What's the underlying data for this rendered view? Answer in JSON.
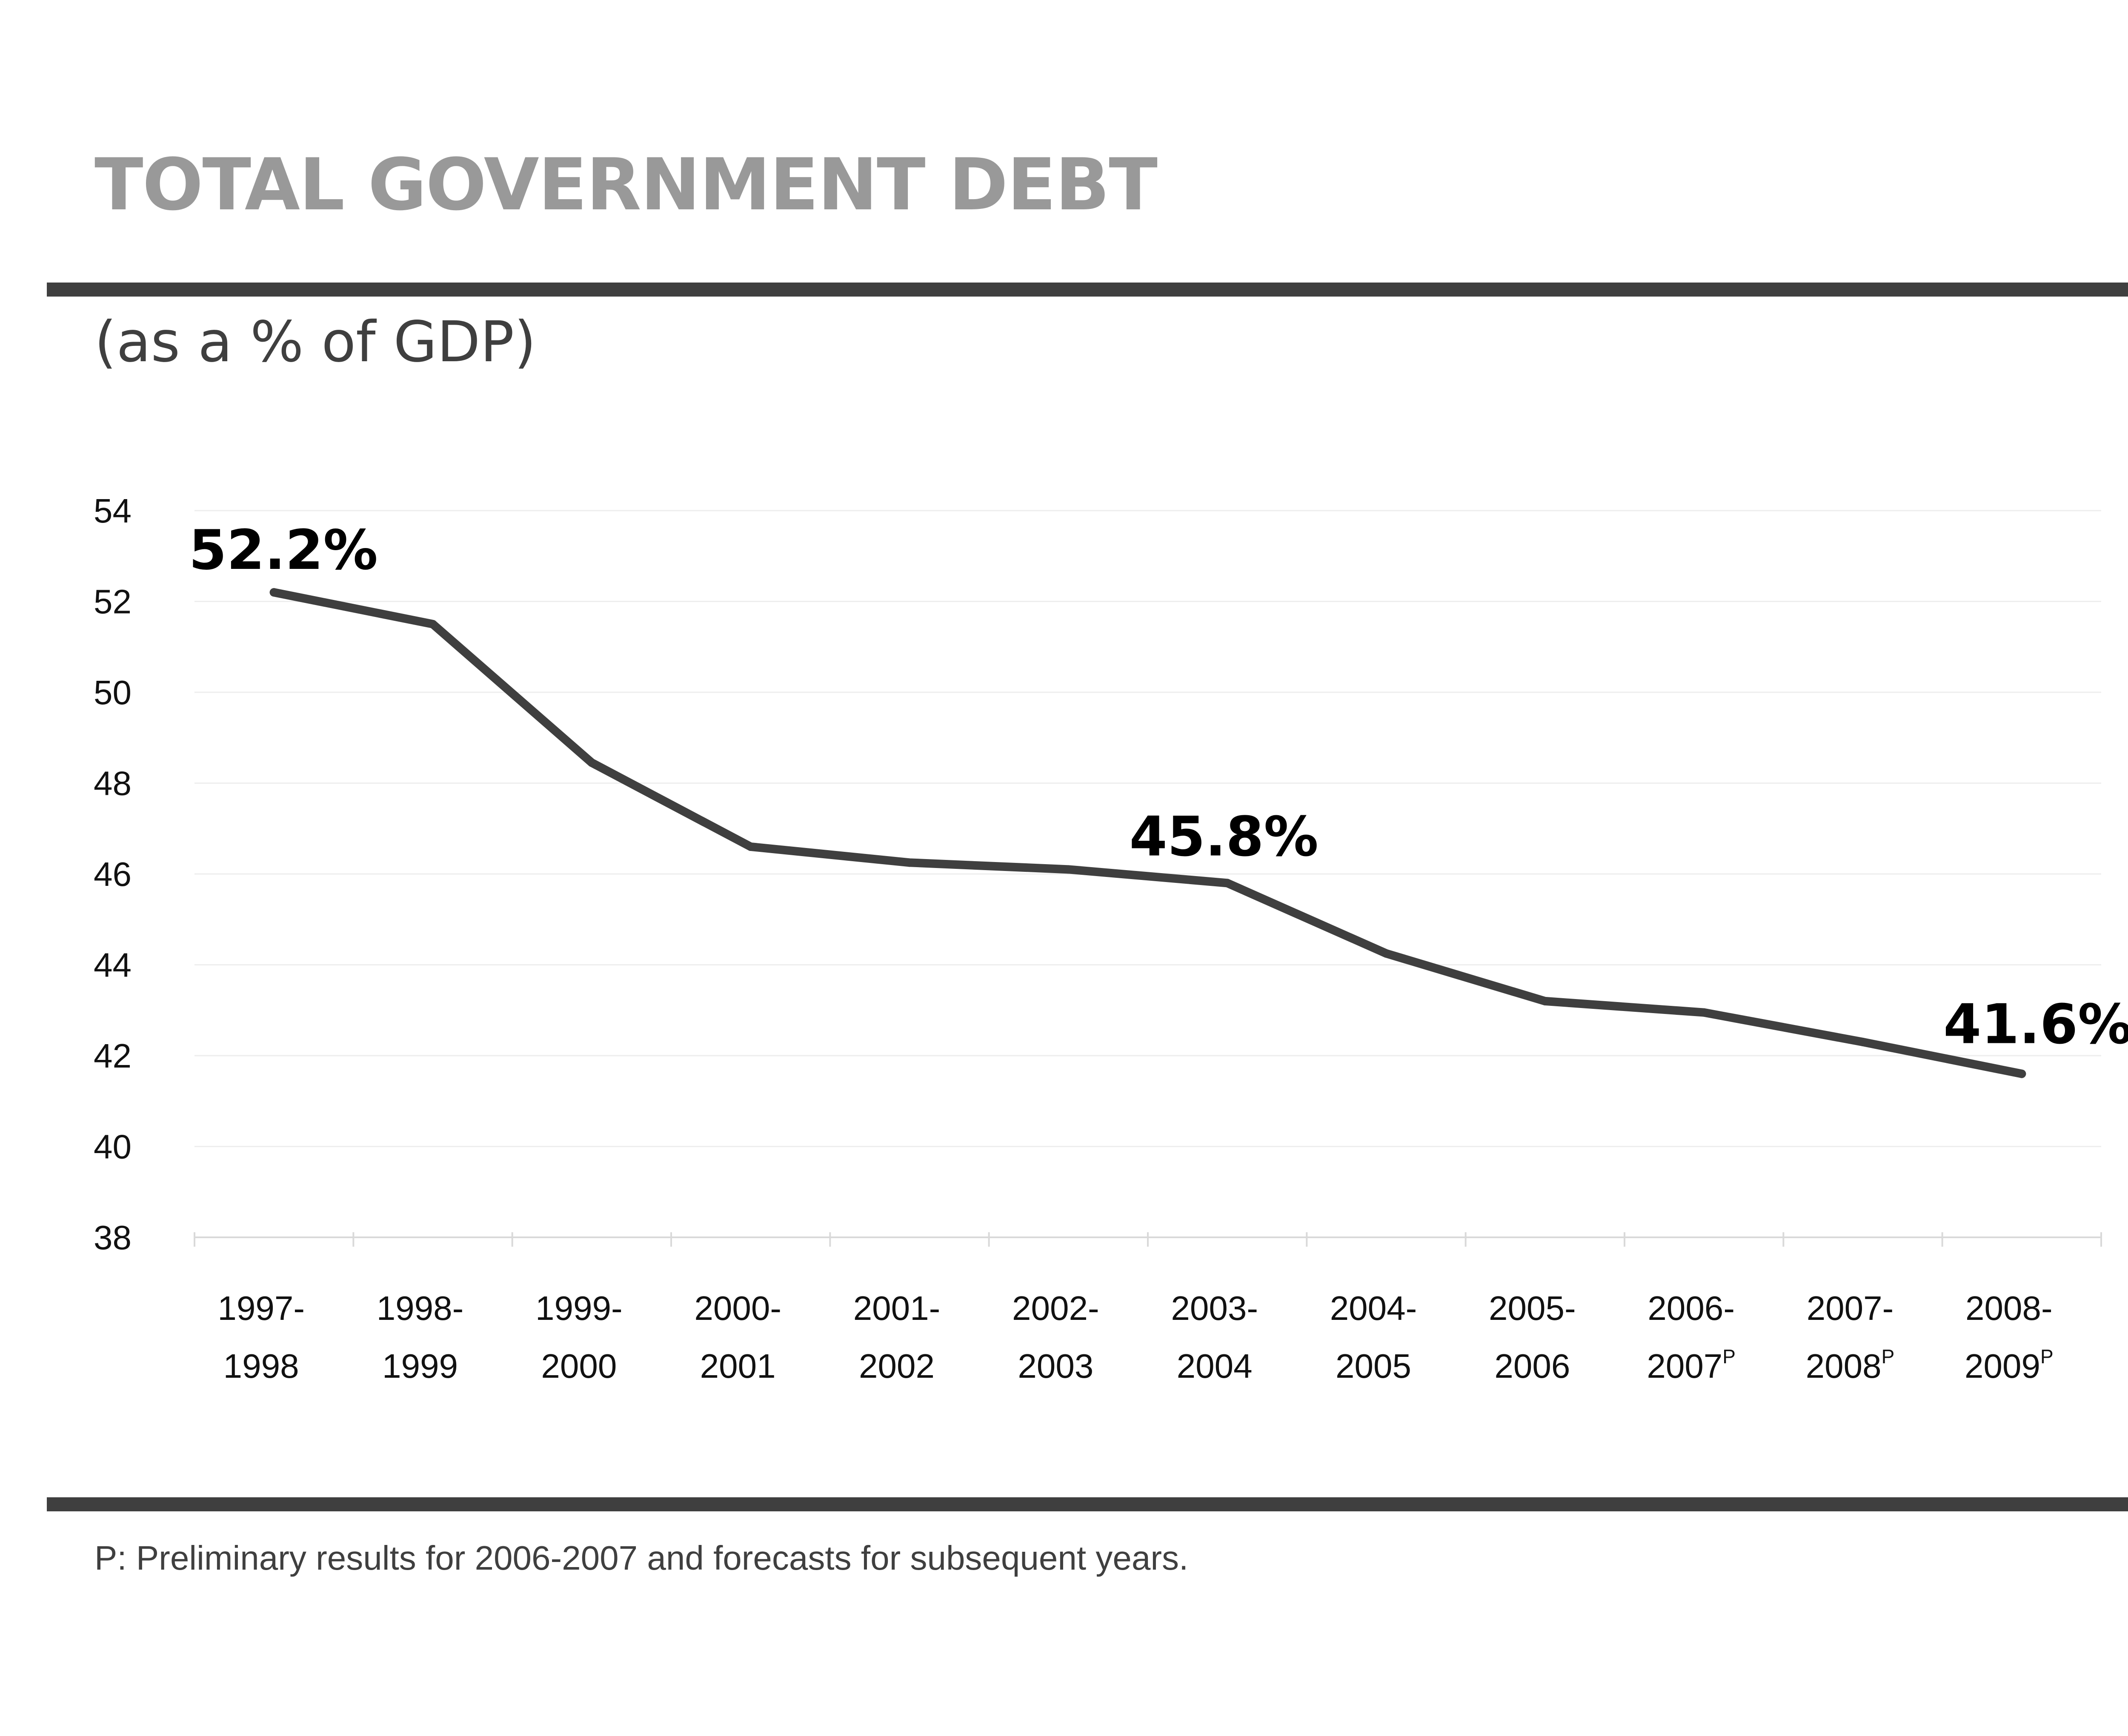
{
  "header": {
    "title": "TOTAL GOVERNMENT DEBT",
    "subtitle": "(as a % of GDP)"
  },
  "footnote": "P: Preliminary results for 2006-2007 and forecasts for subsequent years.",
  "colors": {
    "title": "#999999",
    "rules": "#3f3f3f",
    "line": "#3f3f3f",
    "grid": "#eeeeee"
  },
  "chart_data": {
    "type": "line",
    "title": "TOTAL GOVERNMENT DEBT",
    "subtitle": "(as a % of GDP)",
    "xlabel": "",
    "ylabel": "",
    "ylim": [
      38,
      54
    ],
    "yticks": [
      54,
      52,
      50,
      48,
      46,
      44,
      42,
      40,
      38
    ],
    "grid": true,
    "categories": [
      {
        "line1": "1997-",
        "line2": "1998",
        "sup": ""
      },
      {
        "line1": "1998-",
        "line2": "1999",
        "sup": ""
      },
      {
        "line1": "1999-",
        "line2": "2000",
        "sup": ""
      },
      {
        "line1": "2000-",
        "line2": "2001",
        "sup": ""
      },
      {
        "line1": "2001-",
        "line2": "2002",
        "sup": ""
      },
      {
        "line1": "2002-",
        "line2": "2003",
        "sup": ""
      },
      {
        "line1": "2003-",
        "line2": "2004",
        "sup": ""
      },
      {
        "line1": "2004-",
        "line2": "2005",
        "sup": ""
      },
      {
        "line1": "2005-",
        "line2": "2006",
        "sup": ""
      },
      {
        "line1": "2006-",
        "line2": "2007",
        "sup": "P"
      },
      {
        "line1": "2007-",
        "line2": "2008",
        "sup": "P"
      },
      {
        "line1": "2008-",
        "line2": "2009",
        "sup": "P"
      }
    ],
    "values": [
      52.2,
      51.5,
      48.45,
      46.6,
      46.25,
      46.1,
      45.8,
      44.25,
      43.2,
      42.95,
      42.3,
      41.6
    ],
    "data_labels": [
      {
        "index": 0,
        "text": "52.2%"
      },
      {
        "index": 6,
        "text": "45.8%"
      },
      {
        "index": 11,
        "text": "41.6%"
      }
    ]
  }
}
